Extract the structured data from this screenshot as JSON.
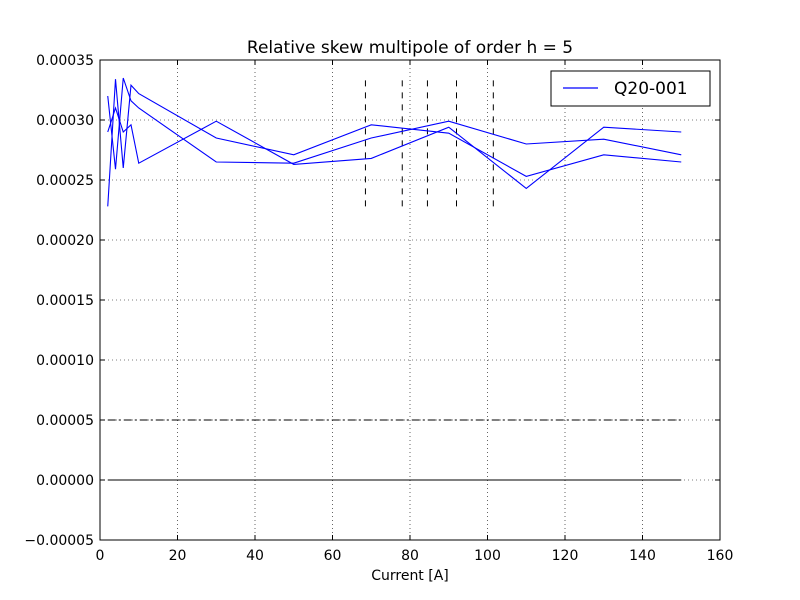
{
  "chart_data": {
    "type": "line",
    "title": "Relative skew multipole of order h = 5",
    "xlabel": "Current [A]",
    "ylabel": "",
    "xlim": [
      0,
      160
    ],
    "ylim": [
      -5e-05,
      0.00035
    ],
    "xticks": [
      0,
      20,
      40,
      60,
      80,
      100,
      120,
      140,
      160
    ],
    "xtick_labels": [
      "0",
      "20",
      "40",
      "60",
      "80",
      "100",
      "120",
      "140",
      "160"
    ],
    "yticks": [
      -5e-05,
      0,
      5e-05,
      0.0001,
      0.00015,
      0.0002,
      0.00025,
      0.0003,
      0.00035
    ],
    "ytick_labels": [
      "−0.00005",
      "0.00000",
      "0.00005",
      "0.00010",
      "0.00015",
      "0.00020",
      "0.00025",
      "0.00030",
      "0.00035"
    ],
    "grid": true,
    "legend_position": "top-right",
    "colors": {
      "series": "#0000ff",
      "reference": "#000000",
      "grid": "#000000"
    },
    "series": [
      {
        "name": "Q20-001",
        "segments": [
          {
            "x": [
              2,
              4,
              6,
              8,
              10,
              30,
              50,
              70,
              90,
              110,
              130,
              150
            ],
            "y": [
              0.000228,
              0.000334,
              0.00026,
              0.000329,
              0.000322,
              0.000285,
              0.000271,
              0.000296,
              0.000289,
              0.000253,
              0.000271,
              0.000265
            ]
          },
          {
            "x": [
              2,
              4,
              6,
              8,
              10,
              30,
              50,
              70,
              90,
              110,
              130,
              150
            ],
            "y": [
              0.00032,
              0.000259,
              0.000335,
              0.000316,
              0.00031,
              0.000265,
              0.000264,
              0.000285,
              0.000299,
              0.00028,
              0.000284,
              0.000271
            ]
          },
          {
            "x": [
              2,
              4,
              6,
              8,
              10,
              30,
              50,
              70,
              90,
              110,
              130,
              150
            ],
            "y": [
              0.00029,
              0.00031,
              0.00029,
              0.000296,
              0.000264,
              0.000299,
              0.000263,
              0.000268,
              0.000294,
              0.000243,
              0.000294,
              0.00029
            ]
          }
        ]
      }
    ],
    "reference_lines": [
      {
        "kind": "horizontal",
        "y": 0,
        "x_range": [
          2,
          150
        ],
        "style": "solid"
      },
      {
        "kind": "horizontal",
        "y": 5e-05,
        "x_range": [
          2,
          150
        ],
        "style": "dashdot"
      }
    ],
    "vertical_markers": {
      "x": [
        68.5,
        78,
        84.5,
        92,
        101.5
      ],
      "y_range": [
        0.000228,
        0.000333
      ],
      "style": "dashed"
    }
  }
}
